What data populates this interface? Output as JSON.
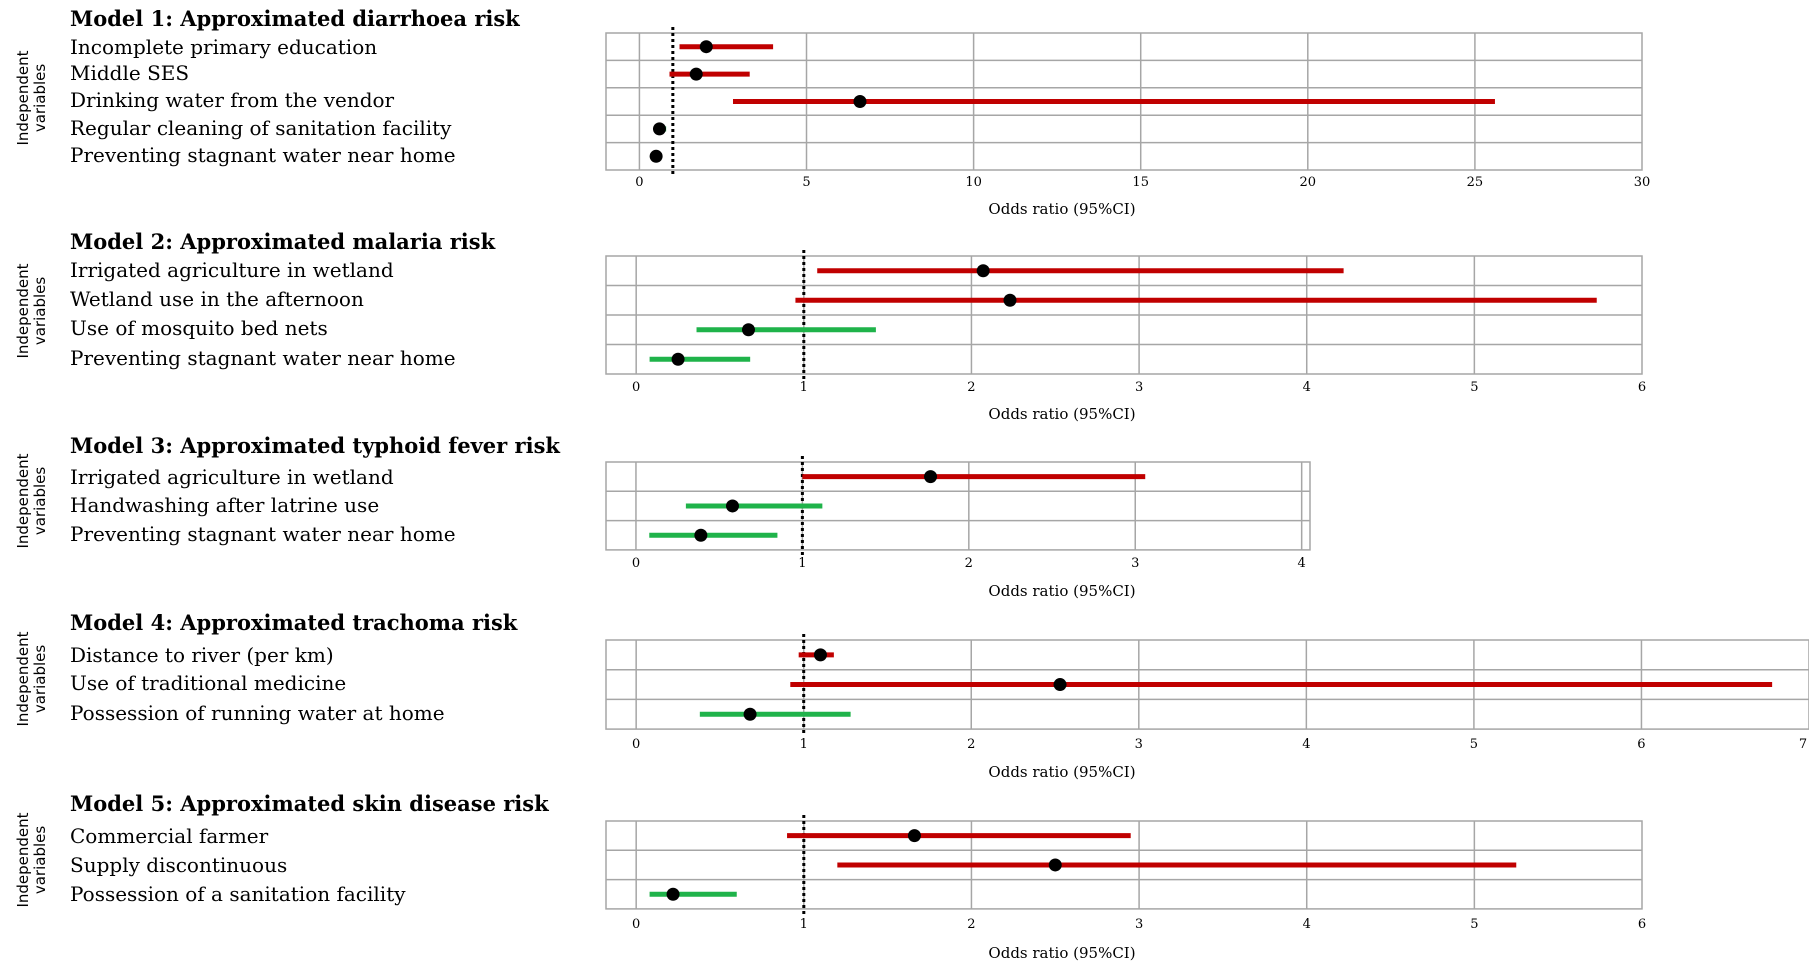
{
  "y_axis_label": [
    "Independent",
    "variables"
  ],
  "colors": {
    "risk_increasing": "#c00000",
    "risk_decreasing": "#1fb34a",
    "grid": "#a6a6a6",
    "reference_line": "#000000",
    "point": "#000000"
  },
  "chart_data": [
    {
      "type": "forest",
      "title": "Model 1: Approximated diarrhoea risk",
      "xlabel": "Odds ratio (95%CI)",
      "xlim": [
        -1,
        30
      ],
      "xticks": [
        0,
        5,
        10,
        15,
        20,
        25,
        30
      ],
      "reference": 1,
      "categories": [
        "Incomplete primary education",
        "Middle SES",
        "Drinking water from the vendor",
        "Regular cleaning of sanitation facility",
        "Preventing stagnant water near home"
      ],
      "estimates": [
        2.0,
        1.7,
        6.6,
        0.6,
        0.5
      ],
      "ci_lower": [
        1.2,
        0.9,
        2.8,
        0.45,
        0.35
      ],
      "ci_upper": [
        4.0,
        3.3,
        25.6,
        0.8,
        0.65
      ],
      "direction": [
        "risk",
        "risk",
        "risk",
        "protective",
        "protective"
      ]
    },
    {
      "type": "forest",
      "title": "Model 2: Approximated malaria risk",
      "xlabel": "Odds ratio (95%CI)",
      "xlim": [
        -0.18,
        6
      ],
      "xticks": [
        0,
        1,
        2,
        3,
        4,
        5,
        6
      ],
      "reference": 1,
      "categories": [
        "Irrigated agriculture in wetland",
        "Wetland use in the afternoon",
        "Use of mosquito bed nets",
        "Preventing stagnant water near home"
      ],
      "estimates": [
        2.07,
        2.23,
        0.67,
        0.25
      ],
      "ci_lower": [
        1.08,
        0.95,
        0.36,
        0.08
      ],
      "ci_upper": [
        4.22,
        5.73,
        1.43,
        0.68
      ],
      "direction": [
        "risk",
        "risk",
        "protective",
        "protective"
      ]
    },
    {
      "type": "forest",
      "title": "Model 3: Approximated typhoid fever risk",
      "xlabel": "Odds ratio (95%CI)",
      "xlim": [
        -0.18,
        4.05
      ],
      "xticks": [
        0,
        1,
        2,
        3,
        4
      ],
      "reference": 1,
      "categories": [
        "Irrigated agriculture in wetland",
        "Handwashing after latrine use",
        "Preventing stagnant water near home"
      ],
      "estimates": [
        1.77,
        0.58,
        0.39
      ],
      "ci_lower": [
        1.0,
        0.3,
        0.08
      ],
      "ci_upper": [
        3.06,
        1.12,
        0.85
      ],
      "direction": [
        "risk",
        "protective",
        "protective"
      ]
    },
    {
      "type": "forest",
      "title": "Model 4: Approximated trachoma risk",
      "xlabel": "Odds ratio (95%CI)",
      "xlim": [
        -0.18,
        7
      ],
      "xticks": [
        0,
        1,
        2,
        3,
        4,
        5,
        6,
        7
      ],
      "reference": 1,
      "categories": [
        "Distance to river (per km)",
        "Use of traditional medicine",
        "Possession of running water at home"
      ],
      "estimates": [
        1.1,
        2.53,
        0.68
      ],
      "ci_lower": [
        0.97,
        0.92,
        0.38
      ],
      "ci_upper": [
        1.18,
        6.78,
        1.28
      ],
      "direction": [
        "risk",
        "risk",
        "protective"
      ]
    },
    {
      "type": "forest",
      "title": "Model 5: Approximated skin disease risk",
      "xlabel": "Odds ratio (95%CI)",
      "xlim": [
        -0.18,
        6
      ],
      "xticks": [
        0,
        1,
        2,
        3,
        4,
        5,
        6
      ],
      "reference": 1,
      "categories": [
        "Commercial farmer",
        "Supply discontinuous",
        "Possession of a sanitation facility"
      ],
      "estimates": [
        1.66,
        2.5,
        0.22
      ],
      "ci_lower": [
        0.9,
        1.2,
        0.08
      ],
      "ci_upper": [
        2.95,
        5.25,
        0.6
      ],
      "direction": [
        "risk",
        "risk",
        "protective"
      ]
    }
  ]
}
